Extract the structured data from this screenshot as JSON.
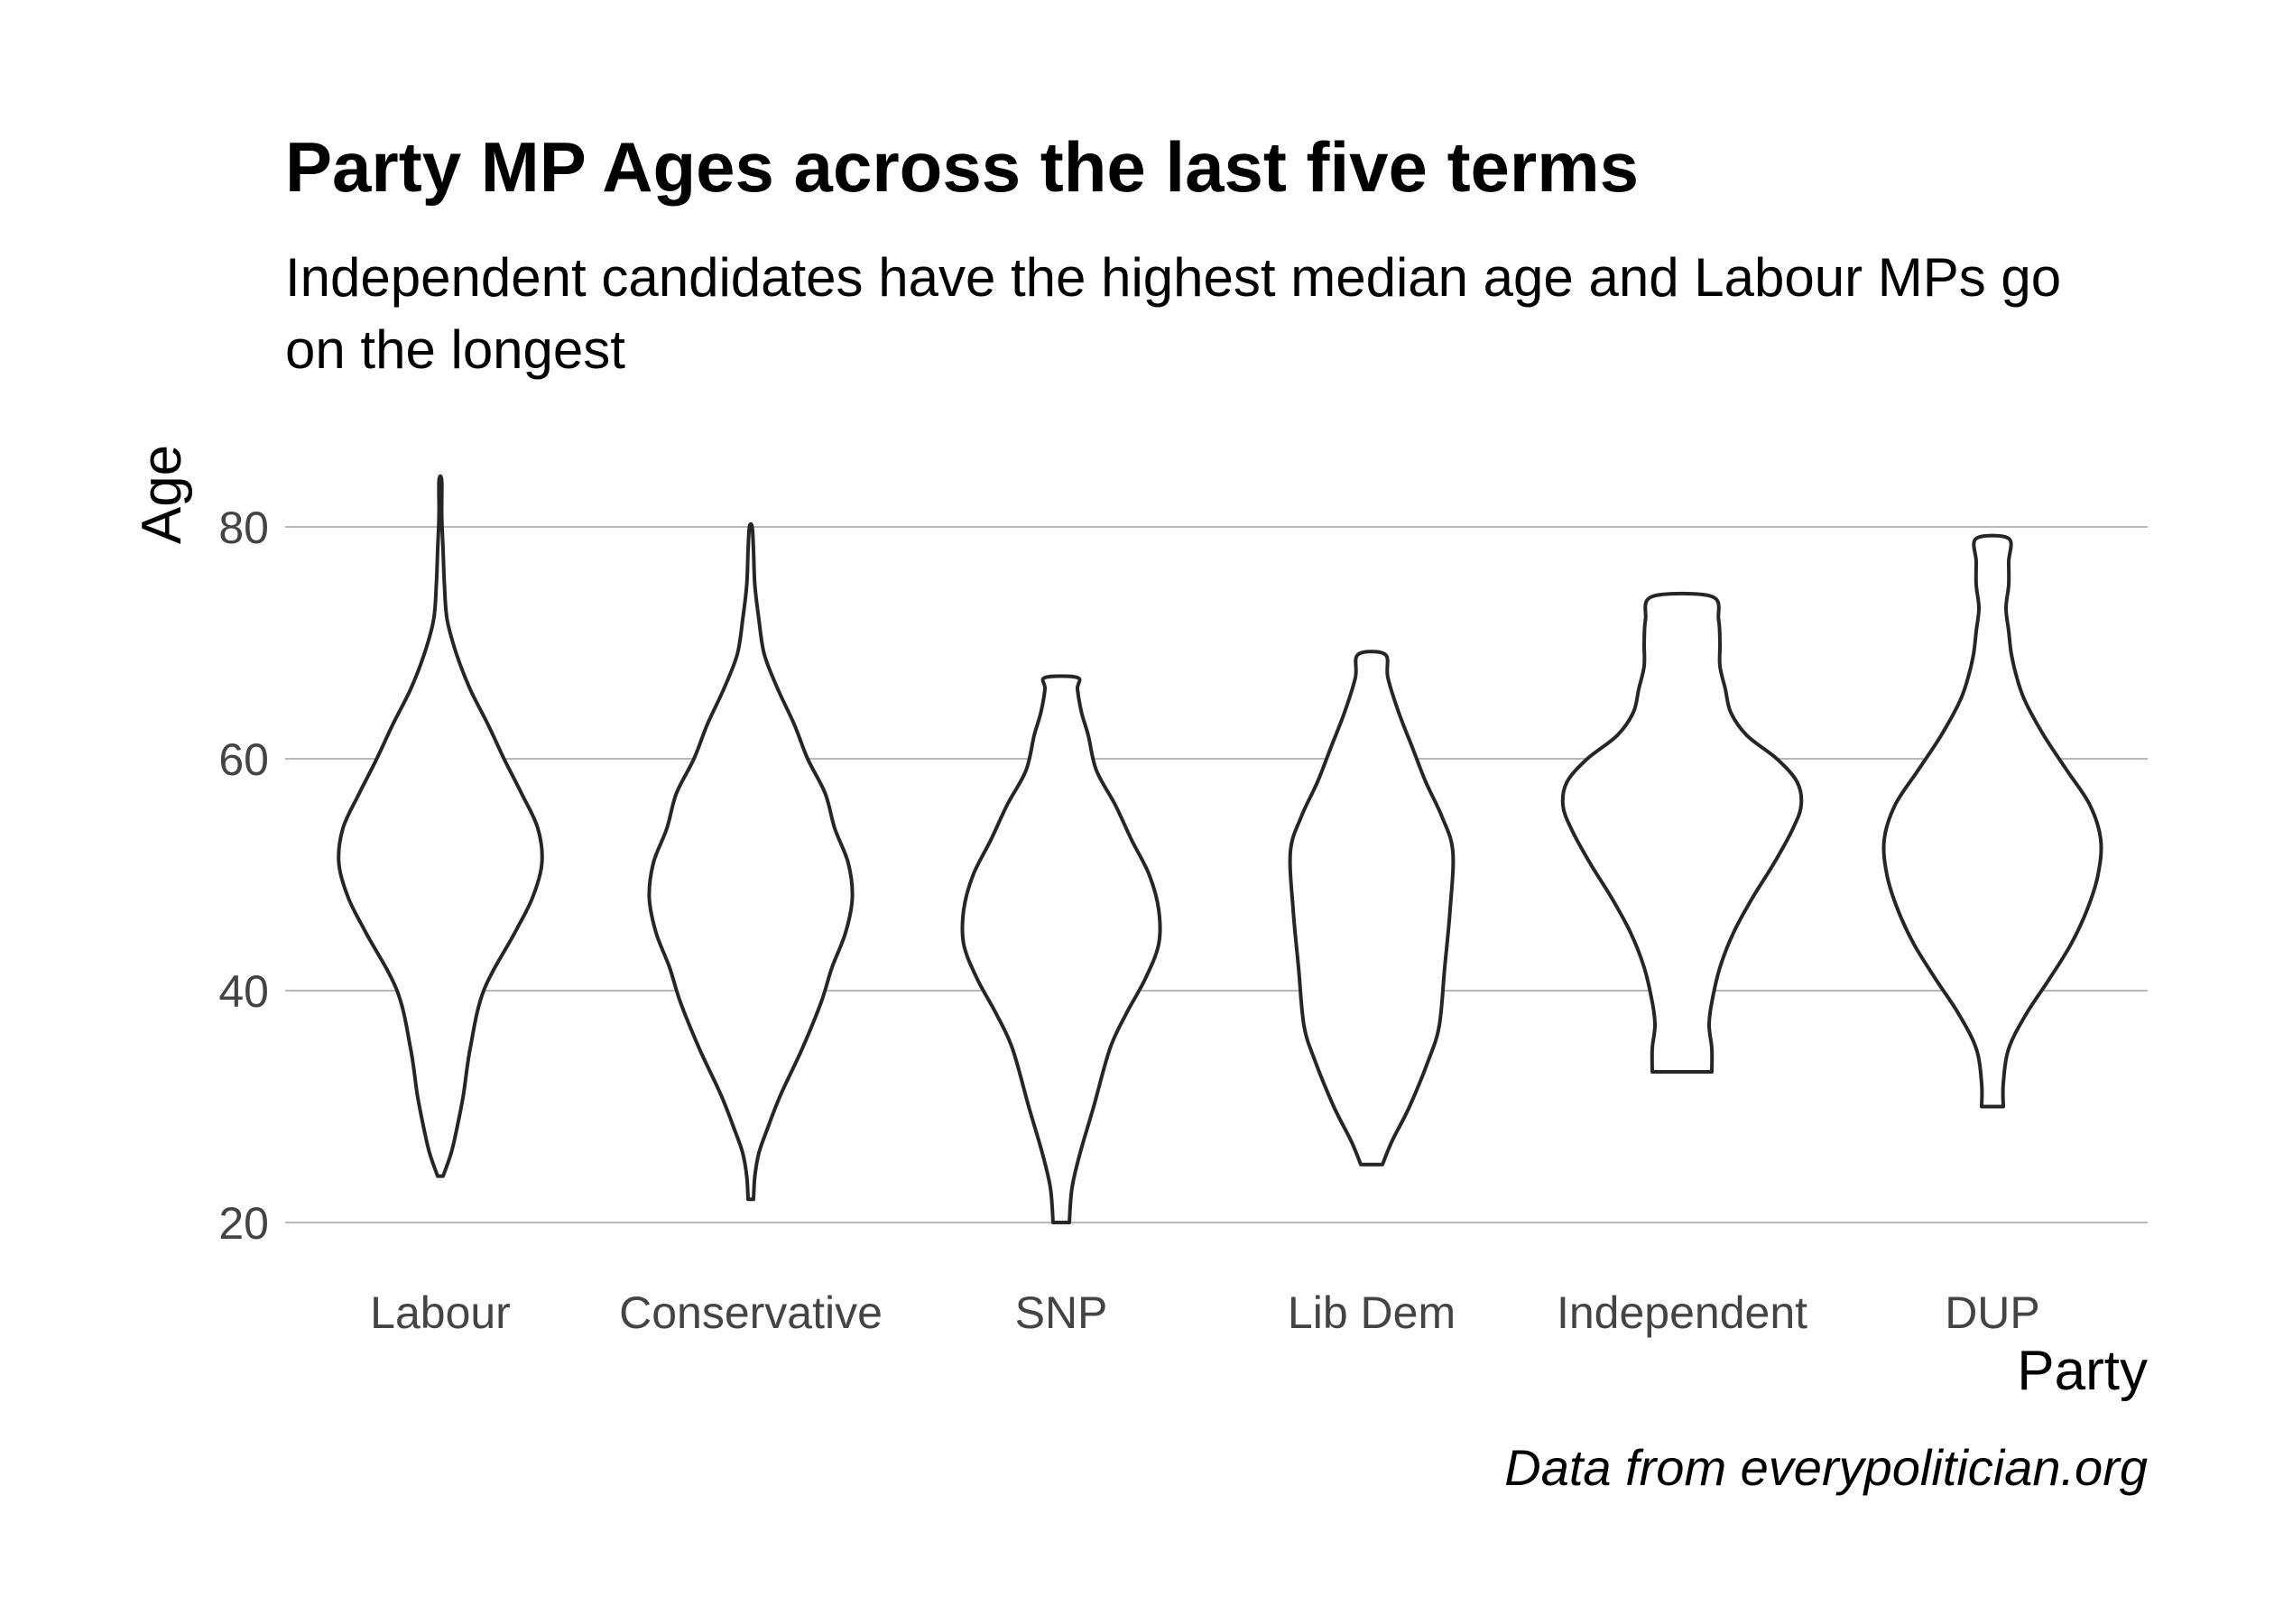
{
  "chart_data": {
    "type": "violin",
    "title": "Party MP Ages across the last five terms",
    "subtitle": "Independent candidates have the highest median age and Labour MPs go on the longest",
    "caption": "Data from everypolitician.org",
    "xlabel": "Party",
    "ylabel": "Age",
    "ylim": [
      18,
      87
    ],
    "yticks": [
      20,
      40,
      60,
      80
    ],
    "grid": "horizontal",
    "categories": [
      "Labour",
      "Conservative",
      "SNP",
      "Lib Dem",
      "Independent",
      "DUP"
    ],
    "violins": [
      {
        "name": "Labour",
        "min": 24,
        "max": 84,
        "profile": [
          [
            24,
            0.02
          ],
          [
            26,
            0.08
          ],
          [
            28,
            0.12
          ],
          [
            31,
            0.17
          ],
          [
            35,
            0.22
          ],
          [
            40,
            0.32
          ],
          [
            45,
            0.55
          ],
          [
            48,
            0.68
          ],
          [
            51,
            0.75
          ],
          [
            54,
            0.72
          ],
          [
            57,
            0.6
          ],
          [
            60,
            0.47
          ],
          [
            63,
            0.35
          ],
          [
            66,
            0.22
          ],
          [
            69,
            0.12
          ],
          [
            72,
            0.05
          ],
          [
            75,
            0.03
          ],
          [
            78,
            0.02
          ],
          [
            81,
            0.01
          ],
          [
            84,
            0.01
          ]
        ]
      },
      {
        "name": "Conservative",
        "min": 22,
        "max": 80,
        "profile": [
          [
            22,
            0.02
          ],
          [
            24,
            0.03
          ],
          [
            26,
            0.06
          ],
          [
            28,
            0.12
          ],
          [
            31,
            0.22
          ],
          [
            35,
            0.38
          ],
          [
            39,
            0.52
          ],
          [
            42,
            0.6
          ],
          [
            45,
            0.7
          ],
          [
            48,
            0.75
          ],
          [
            51,
            0.72
          ],
          [
            54,
            0.62
          ],
          [
            57,
            0.55
          ],
          [
            60,
            0.42
          ],
          [
            63,
            0.32
          ],
          [
            66,
            0.2
          ],
          [
            69,
            0.1
          ],
          [
            72,
            0.06
          ],
          [
            75,
            0.03
          ],
          [
            78,
            0.02
          ],
          [
            80,
            0.01
          ]
        ]
      },
      {
        "name": "SNP",
        "min": 20,
        "max": 67,
        "profile": [
          [
            20,
            0.06
          ],
          [
            23,
            0.08
          ],
          [
            26,
            0.14
          ],
          [
            30,
            0.24
          ],
          [
            35,
            0.36
          ],
          [
            38,
            0.48
          ],
          [
            41,
            0.62
          ],
          [
            44,
            0.72
          ],
          [
            47,
            0.72
          ],
          [
            50,
            0.65
          ],
          [
            53,
            0.52
          ],
          [
            56,
            0.4
          ],
          [
            59,
            0.26
          ],
          [
            62,
            0.2
          ],
          [
            64,
            0.15
          ],
          [
            66,
            0.12
          ],
          [
            67,
            0.12
          ]
        ]
      },
      {
        "name": "Lib Dem",
        "min": 25,
        "max": 69,
        "profile": [
          [
            25,
            0.08
          ],
          [
            27,
            0.15
          ],
          [
            30,
            0.28
          ],
          [
            34,
            0.42
          ],
          [
            37,
            0.5
          ],
          [
            42,
            0.54
          ],
          [
            47,
            0.58
          ],
          [
            52,
            0.6
          ],
          [
            55,
            0.52
          ],
          [
            58,
            0.4
          ],
          [
            61,
            0.3
          ],
          [
            64,
            0.2
          ],
          [
            67,
            0.12
          ],
          [
            69,
            0.1
          ]
        ]
      },
      {
        "name": "Independent",
        "min": 33,
        "max": 74,
        "profile": [
          [
            33,
            0.22
          ],
          [
            35,
            0.22
          ],
          [
            37,
            0.2
          ],
          [
            39,
            0.22
          ],
          [
            42,
            0.28
          ],
          [
            45,
            0.38
          ],
          [
            48,
            0.52
          ],
          [
            51,
            0.68
          ],
          [
            54,
            0.82
          ],
          [
            56,
            0.88
          ],
          [
            58,
            0.85
          ],
          [
            60,
            0.7
          ],
          [
            62,
            0.48
          ],
          [
            64,
            0.36
          ],
          [
            66,
            0.32
          ],
          [
            68,
            0.28
          ],
          [
            70,
            0.28
          ],
          [
            72,
            0.27
          ],
          [
            74,
            0.22
          ]
        ]
      },
      {
        "name": "DUP",
        "min": 30,
        "max": 79,
        "profile": [
          [
            30,
            0.08
          ],
          [
            32,
            0.08
          ],
          [
            35,
            0.12
          ],
          [
            38,
            0.25
          ],
          [
            41,
            0.42
          ],
          [
            44,
            0.58
          ],
          [
            47,
            0.7
          ],
          [
            50,
            0.78
          ],
          [
            53,
            0.8
          ],
          [
            56,
            0.72
          ],
          [
            59,
            0.55
          ],
          [
            62,
            0.38
          ],
          [
            65,
            0.24
          ],
          [
            67,
            0.18
          ],
          [
            69,
            0.14
          ],
          [
            71,
            0.12
          ],
          [
            73,
            0.1
          ],
          [
            75,
            0.12
          ],
          [
            77,
            0.12
          ],
          [
            79,
            0.12
          ]
        ]
      }
    ]
  }
}
